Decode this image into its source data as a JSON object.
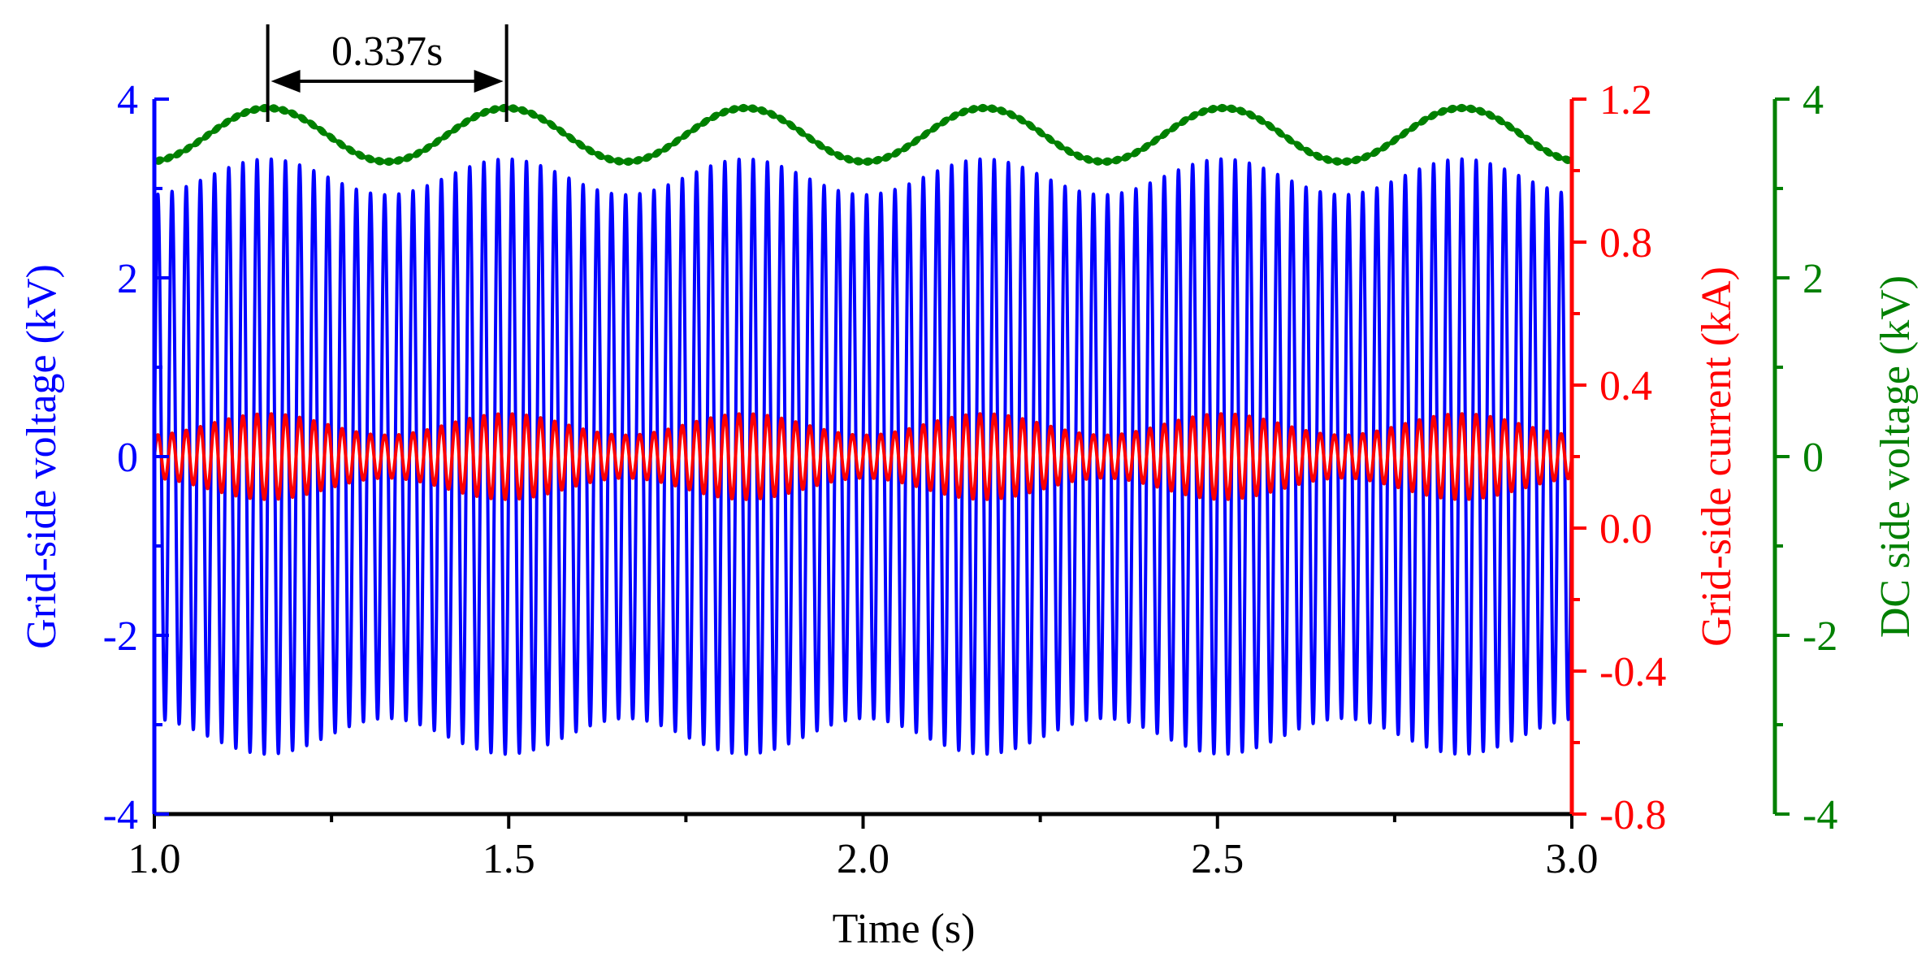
{
  "chart_data": {
    "type": "line",
    "xlabel": "Time (s)",
    "xlim": [
      1.0,
      3.0
    ],
    "x_ticks": [
      "1.0",
      "1.5",
      "2.0",
      "2.5",
      "3.0"
    ],
    "x_tick_values": [
      1.0,
      1.5,
      2.0,
      2.5,
      3.0
    ],
    "x_minor_ticks": [
      1.25,
      1.75,
      2.25,
      2.75
    ],
    "axes": [
      {
        "id": "left",
        "label": "Grid-side voltage (kV)",
        "color": "#0000ff",
        "ylim": [
          -4,
          4
        ],
        "tick_values": [
          -4,
          -2,
          0,
          2,
          4
        ],
        "tick_labels": [
          "-4",
          "-2",
          "0",
          "2",
          "4"
        ]
      },
      {
        "id": "right1",
        "label": "Grid-side current (kA)",
        "color": "#ff0000",
        "ylim": [
          -0.8,
          1.2
        ],
        "tick_values": [
          -0.8,
          -0.4,
          0.0,
          0.4,
          0.8,
          1.2
        ],
        "tick_labels": [
          "-0.8",
          "-0.4",
          "0.0",
          "0.4",
          "0.8",
          "1.2"
        ]
      },
      {
        "id": "right2",
        "label": "DC side voltage (kV)",
        "color": "#008000",
        "ylim": [
          -4,
          4
        ],
        "tick_values": [
          -4,
          -2,
          0,
          2,
          4
        ],
        "tick_labels": [
          "-4",
          "-2",
          "0",
          "2",
          "4"
        ]
      }
    ],
    "series": [
      {
        "axis": "left",
        "color": "#0000ff",
        "kind": "modulated_sine",
        "carrier_hz": 50,
        "envelope_mean": 3.13,
        "envelope_amplitude": 0.2,
        "envelope_period_s": 0.337,
        "envelope_phase_peak_s": 1.16
      },
      {
        "axis": "right1",
        "color": "#ff0000",
        "kind": "modulated_sine",
        "carrier_hz": 50,
        "envelope_mean": 0.0,
        "envelope_amplitude": 0.05,
        "envelope_period_s": 0.337,
        "envelope_phase_peak_s": 1.16,
        "center": 0.2
      },
      {
        "axis": "right2",
        "color": "#008000",
        "kind": "oscillation",
        "mean": 3.6,
        "amplitude": 0.3,
        "period_s": 0.337,
        "phase_peak_s": 1.16,
        "ripple": 0.03
      }
    ],
    "annotation": {
      "text": "0.337s",
      "x_start": 1.16,
      "x_end": 1.497
    }
  }
}
